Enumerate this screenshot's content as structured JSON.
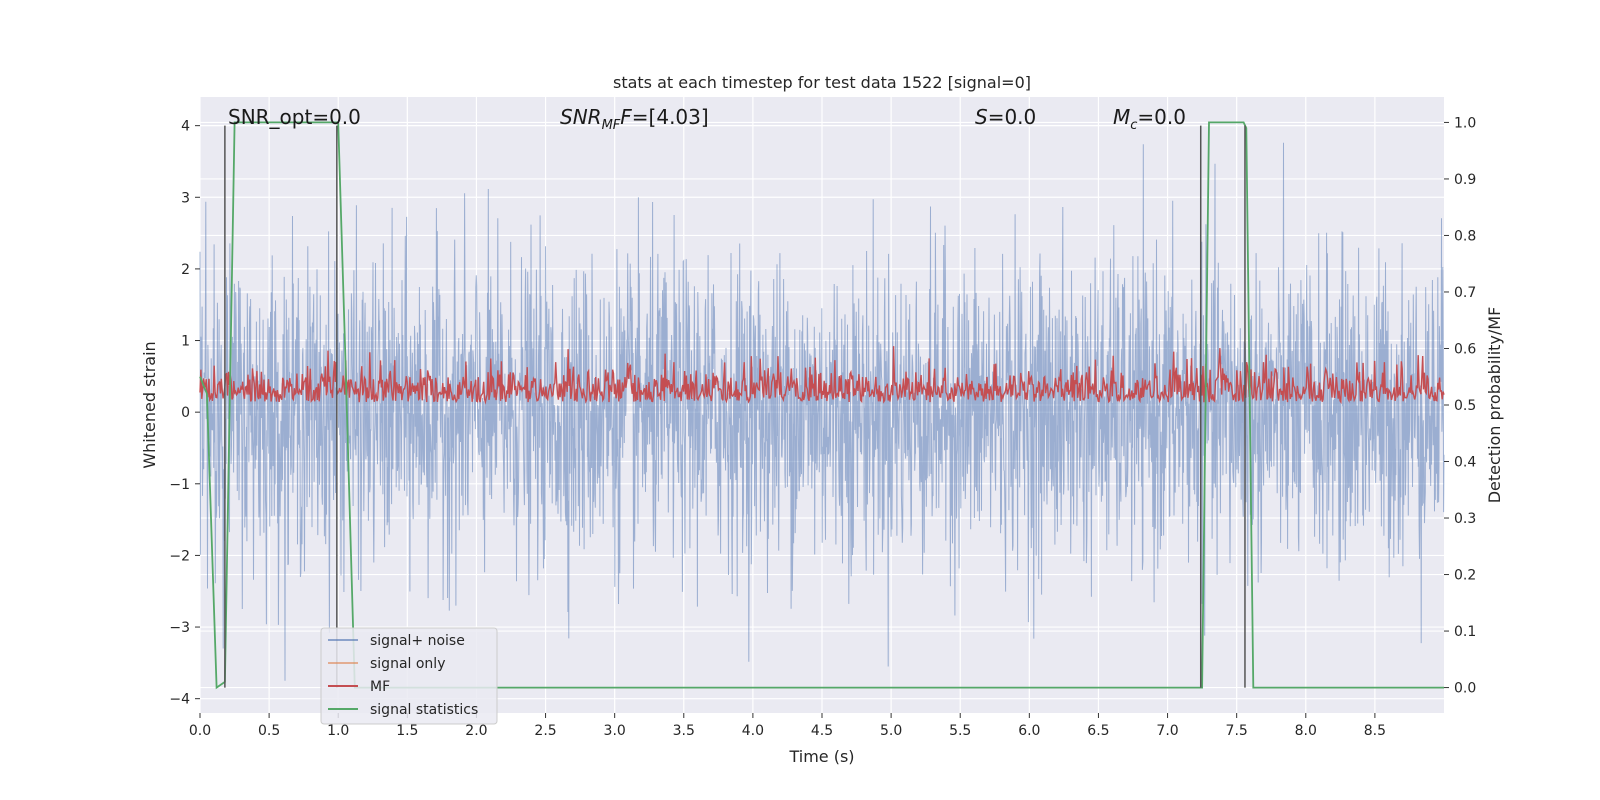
{
  "chart_data": {
    "type": "line",
    "title": "stats at each timestep for test data 1522 [signal=0]",
    "xlabel": "Time (s)",
    "ylabel": "Whitened strain",
    "y2label": "Detection probability/MF",
    "xlim": [
      0,
      9.0
    ],
    "ylim": [
      -4.2,
      4.4
    ],
    "y2lim": [
      -0.045,
      1.045
    ],
    "xticks": [
      "0.0",
      "0.5",
      "1.0",
      "1.5",
      "2.0",
      "2.5",
      "3.0",
      "3.5",
      "4.0",
      "4.5",
      "5.0",
      "5.5",
      "6.0",
      "6.5",
      "7.0",
      "7.5",
      "8.0",
      "8.5"
    ],
    "yticks": [
      "4",
      "3",
      "2",
      "1",
      "0",
      "−1",
      "−2",
      "−3",
      "−4"
    ],
    "y2ticks": [
      "1.0",
      "0.9",
      "0.8",
      "0.7",
      "0.6",
      "0.5",
      "0.4",
      "0.3",
      "0.2",
      "0.1",
      "0.0"
    ],
    "grid": true,
    "legend_position": "lower-left",
    "annotations": {
      "snr_opt": "SNR_opt=0.0",
      "snr_mf_main": "SNR",
      "snr_mf_sub": "MF",
      "snr_mf_rest": "=[4.03]",
      "s_main": "S",
      "s_rest": "=0.0",
      "mc_main": "M",
      "mc_sub": "c",
      "mc_rest": "=0.0"
    },
    "series": [
      {
        "name": "signal+ noise",
        "color": "#4c72b0",
        "axis": "left",
        "description_values": {
          "noise_range": [
            -3.75,
            4.02
          ],
          "n_points": 3000
        }
      },
      {
        "name": "signal only",
        "color": "#dd8452",
        "axis": "left",
        "values": []
      },
      {
        "name": "MF",
        "color": "#c44e52",
        "axis": "right",
        "description_values": {
          "range": [
            0.48,
            0.61
          ]
        }
      },
      {
        "name": "signal statistics",
        "color": "#55a868",
        "axis": "right",
        "x": [
          0.0,
          0.05,
          0.12,
          0.18,
          0.25,
          0.7,
          1.0,
          1.05,
          1.12,
          1.5,
          3.0,
          5.0,
          7.0,
          7.25,
          7.3,
          7.55,
          7.57,
          7.62,
          8.0,
          8.5,
          9.0
        ],
        "values": [
          0.55,
          0.52,
          0.0,
          0.01,
          1.0,
          1.0,
          1.0,
          0.6,
          0.0,
          0.0,
          0.0,
          0.0,
          0.0,
          0.0,
          1.0,
          1.0,
          0.99,
          0.0,
          0.0,
          0.0,
          0.0
        ]
      }
    ],
    "vlines_x": [
      0.18,
      0.99,
      7.24,
      7.56
    ],
    "colors": {
      "plot_bg": "#eaeaf2",
      "grid": "#ffffff",
      "vline": "#555555"
    }
  }
}
